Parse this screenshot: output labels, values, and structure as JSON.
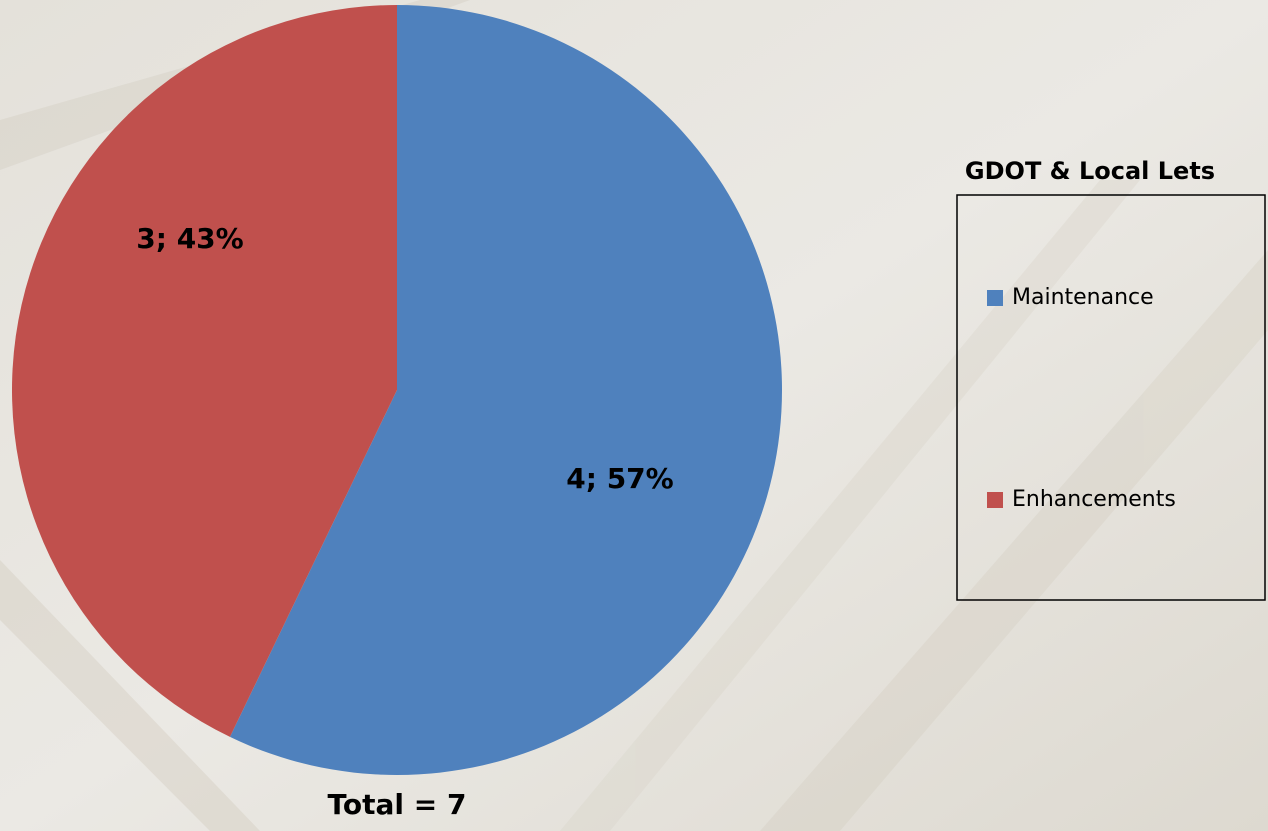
{
  "chart_data": {
    "type": "pie",
    "title": "GDOT & Local Lets",
    "categories": [
      "Maintenance",
      "Enhancements"
    ],
    "values": [
      4,
      3
    ],
    "value_labels": [
      "4; 57%",
      "3; 43%"
    ],
    "colors": [
      "#4f81bd",
      "#c0504d"
    ],
    "annotation": "Total = 7",
    "legend": "right"
  }
}
